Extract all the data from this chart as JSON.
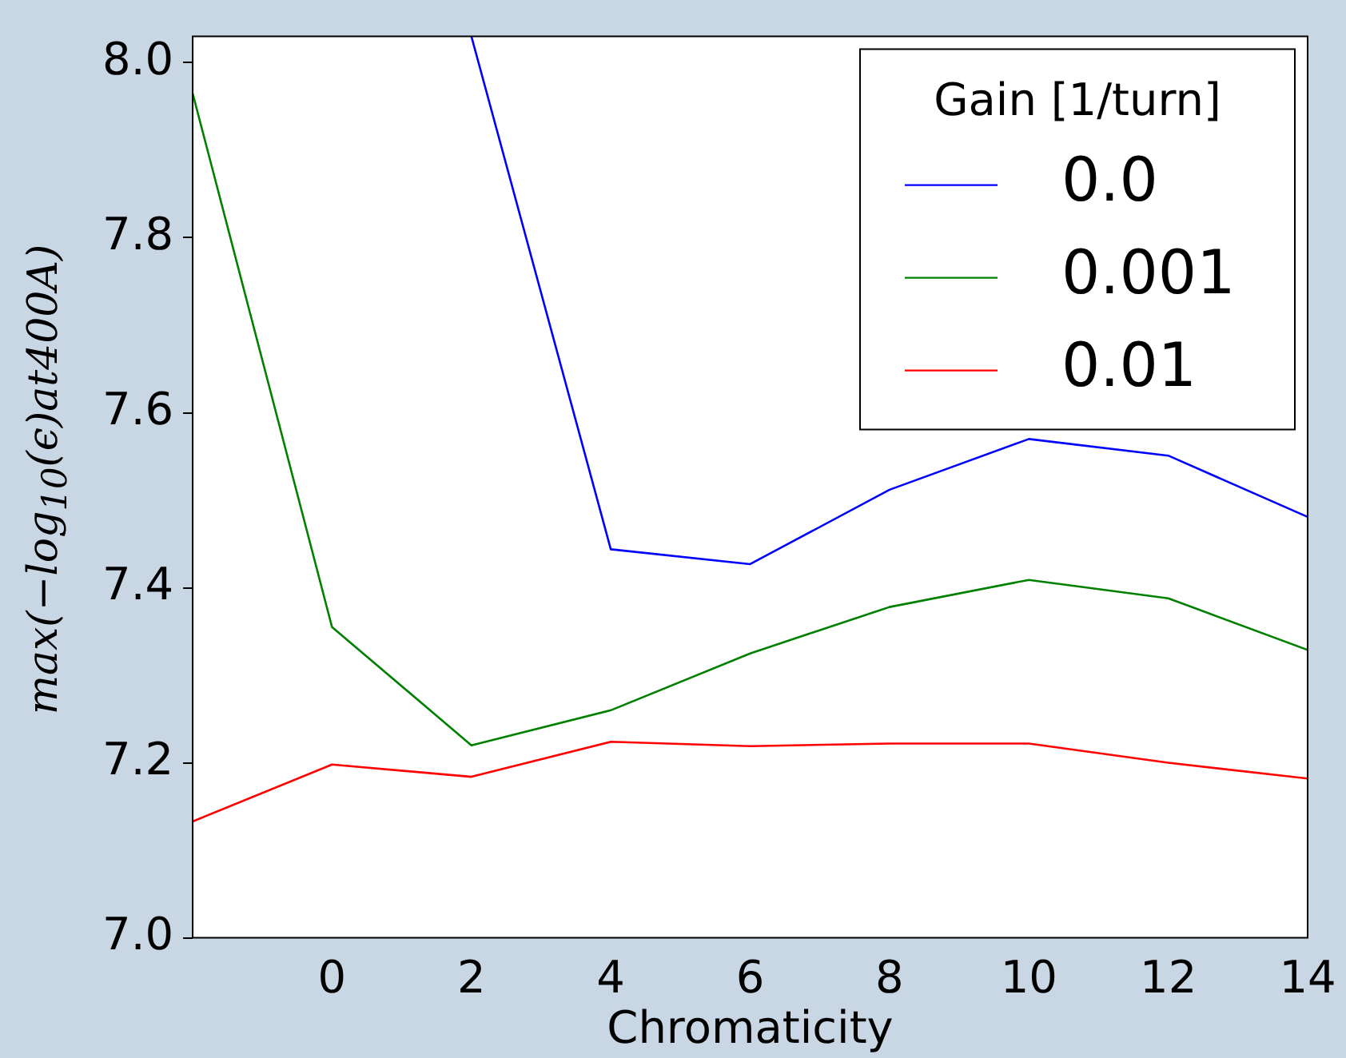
{
  "chart_data": {
    "type": "line",
    "xlabel": "Chromaticity",
    "ylabel": "max(−log$_{10}$(ϵ)at400A)",
    "legend_title": "Gain [1/turn]",
    "legend": "top right",
    "grid": false,
    "x": [
      -2,
      0,
      2,
      4,
      6,
      8,
      10,
      12,
      14
    ],
    "xlim": [
      -2,
      14
    ],
    "xticks": [
      0,
      2,
      4,
      6,
      8,
      10,
      12,
      14
    ],
    "ylim": [
      7.0,
      8.03
    ],
    "yticks": [
      {
        "value": 7,
        "label": "7.0"
      },
      7.2,
      7.4,
      7.6,
      7.8,
      {
        "value": 8,
        "label": "8.0"
      }
    ],
    "series": [
      {
        "name": "0.0",
        "color": "#0000ff",
        "values": [
          null,
          null,
          8.03,
          7.444,
          7.427,
          7.512,
          7.57,
          7.551,
          7.481
        ]
      },
      {
        "name": "0.001",
        "color": "#008000",
        "values": [
          7.965,
          7.355,
          7.22,
          7.26,
          7.325,
          7.378,
          7.409,
          7.388,
          7.329
        ]
      },
      {
        "name": "0.01",
        "color": "#ff0000",
        "values": [
          7.133,
          7.198,
          7.184,
          7.224,
          7.219,
          7.222,
          7.222,
          7.2,
          7.182
        ]
      }
    ]
  }
}
